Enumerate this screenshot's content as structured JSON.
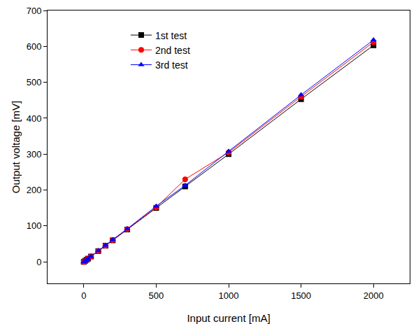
{
  "chart_data": {
    "type": "line",
    "x_label": "Input current [mA]",
    "y_label": "Output voltage [mV]",
    "x": [
      0,
      10,
      20,
      30,
      50,
      100,
      150,
      200,
      300,
      500,
      700,
      1000,
      1500,
      2000
    ],
    "series": [
      {
        "name": "1st test",
        "color": "#000000",
        "marker": "square",
        "values": [
          0,
          3,
          6,
          9,
          15,
          30,
          45,
          60,
          90,
          150,
          210,
          300,
          453,
          603
        ]
      },
      {
        "name": "2nd test",
        "color": "#ff0000",
        "marker": "circle",
        "values": [
          0,
          3,
          6,
          9,
          15,
          30,
          45,
          61,
          91,
          152,
          230,
          305,
          460,
          612
        ]
      },
      {
        "name": "3rd test",
        "color": "#0000ff",
        "marker": "triangle-up",
        "values": [
          0,
          3,
          6,
          9,
          15,
          31,
          46,
          62,
          92,
          155,
          213,
          308,
          465,
          618
        ]
      }
    ],
    "xlim": [
      -250,
      2250
    ],
    "xticks": [
      0,
      500,
      1000,
      1500,
      2000
    ],
    "ylim": [
      -60,
      700
    ],
    "yticks": [
      0,
      100,
      200,
      300,
      400,
      500,
      600,
      700
    ],
    "grid": false,
    "legend": "top-left"
  }
}
